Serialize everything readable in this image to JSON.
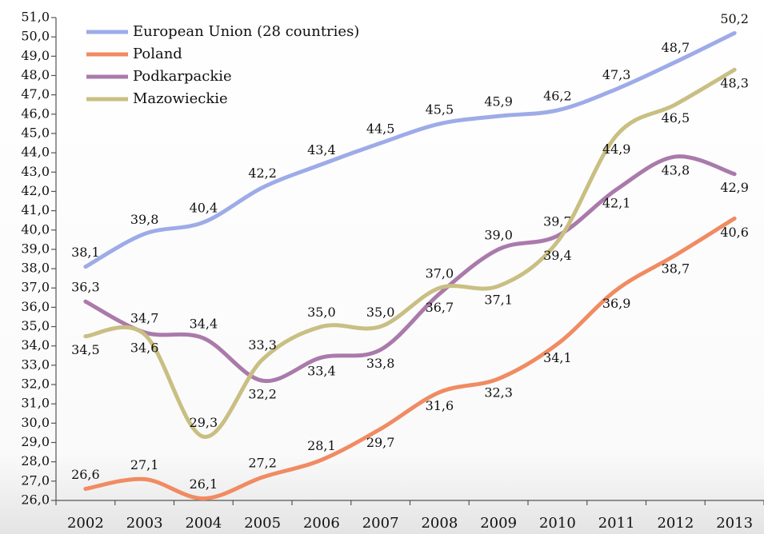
{
  "chart_data": {
    "type": "line",
    "categories": [
      "2002",
      "2003",
      "2004",
      "2005",
      "2006",
      "2007",
      "2008",
      "2009",
      "2010",
      "2011",
      "2012",
      "2013"
    ],
    "series": [
      {
        "name": "European Union (28 countries)",
        "color": "#9dabe8",
        "values": [
          38.1,
          39.8,
          40.4,
          42.2,
          43.4,
          44.5,
          45.5,
          45.9,
          46.2,
          47.3,
          48.7,
          50.2
        ],
        "value_labels": [
          "38,1",
          "39,8",
          "40,4",
          "42,2",
          "43,4",
          "44,5",
          "45,5",
          "45,9",
          "46,2",
          "47,3",
          "48,7",
          "50,2"
        ]
      },
      {
        "name": "Poland",
        "color": "#f08b62",
        "values": [
          26.6,
          27.1,
          26.1,
          27.2,
          28.1,
          29.7,
          31.6,
          32.3,
          34.1,
          36.9,
          38.7,
          40.6
        ],
        "value_labels": [
          "26,6",
          "27,1",
          "26,1",
          "27,2",
          "28,1",
          "29,7",
          "31,6",
          "32,3",
          "34,1",
          "36,9",
          "38,7",
          "40,6"
        ]
      },
      {
        "name": "Podkarpackie",
        "color": "#aa7aab",
        "values": [
          36.3,
          34.7,
          34.4,
          32.2,
          33.4,
          33.8,
          36.7,
          39.0,
          39.7,
          42.1,
          43.8,
          42.9
        ],
        "value_labels": [
          "36,3",
          "34,7",
          "34,4",
          "32,2",
          "33,4",
          "33,8",
          "36,7",
          "39,0",
          "39,7",
          "42,1",
          "43,8",
          "42,9"
        ]
      },
      {
        "name": "Mazowieckie",
        "color": "#c9bf83",
        "values": [
          34.5,
          34.6,
          29.3,
          33.3,
          35.0,
          35.0,
          37.0,
          37.1,
          39.4,
          44.9,
          46.5,
          48.3
        ],
        "value_labels": [
          "34,5",
          "34,6",
          "29,3",
          "33,3",
          "35,0",
          "35,0",
          "37,0",
          "37,1",
          "39,4",
          "44,9",
          "46,5",
          "48,3"
        ]
      }
    ],
    "ylim": [
      26,
      51
    ],
    "yticks": [
      {
        "value": 26,
        "label": "26,0"
      },
      {
        "value": 27,
        "label": "27,0"
      },
      {
        "value": 28,
        "label": "28,0"
      },
      {
        "value": 29,
        "label": "29,0"
      },
      {
        "value": 30,
        "label": "30,0"
      },
      {
        "value": 31,
        "label": "31,0"
      },
      {
        "value": 32,
        "label": "32,0"
      },
      {
        "value": 33,
        "label": "33,0"
      },
      {
        "value": 34,
        "label": "34,0"
      },
      {
        "value": 35,
        "label": "35,0"
      },
      {
        "value": 36,
        "label": "36,0"
      },
      {
        "value": 37,
        "label": "37,0"
      },
      {
        "value": 38,
        "label": "38,0"
      },
      {
        "value": 39,
        "label": "39,0"
      },
      {
        "value": 40,
        "label": "40,0"
      },
      {
        "value": 41,
        "label": "41,0"
      },
      {
        "value": 42,
        "label": "42,0"
      },
      {
        "value": 43,
        "label": "43,0"
      },
      {
        "value": 44,
        "label": "44,0"
      },
      {
        "value": 45,
        "label": "45,0"
      },
      {
        "value": 46,
        "label": "46,0"
      },
      {
        "value": 47,
        "label": "47,0"
      },
      {
        "value": 48,
        "label": "48,0"
      },
      {
        "value": 49,
        "label": "49,0"
      },
      {
        "value": 50,
        "label": "50,0"
      },
      {
        "value": 51,
        "label": "51,0"
      }
    ],
    "legend": "upper left"
  }
}
